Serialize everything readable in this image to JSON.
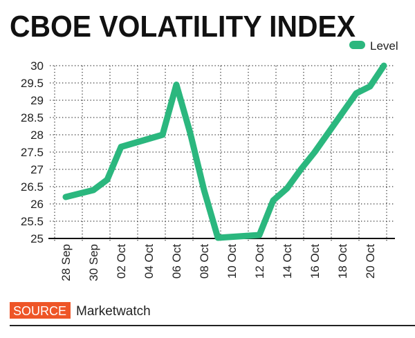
{
  "chart_data": {
    "type": "line",
    "title": "CBOE VOLATILITY INDEX",
    "xlabel": "",
    "ylabel": "",
    "ylim": [
      25,
      30
    ],
    "yticks": [
      "25",
      "25.5",
      "26",
      "26.5",
      "27",
      "27.5",
      "28",
      "28.5",
      "29",
      "29.5",
      "30"
    ],
    "xticks": [
      "28 Sep",
      "30 Sep",
      "02 Oct",
      "04 Oct",
      "06 Oct",
      "08 Oct",
      "10 Oct",
      "12 Oct",
      "14 Oct",
      "16 Oct",
      "18 Oct",
      "20 Oct"
    ],
    "grid": true,
    "legend_position": "top-right",
    "series": [
      {
        "name": "Level",
        "color": "#2bb77e",
        "x": [
          "28 Sep",
          "29 Sep",
          "30 Sep",
          "01 Oct",
          "02 Oct",
          "05 Oct",
          "06 Oct",
          "07 Oct",
          "08 Oct",
          "09 Oct",
          "12 Oct",
          "13 Oct",
          "14 Oct",
          "15 Oct",
          "16 Oct",
          "19 Oct",
          "20 Oct",
          "21 Oct"
        ],
        "values": [
          26.2,
          26.3,
          26.4,
          26.7,
          27.65,
          28.0,
          29.45,
          28.05,
          26.4,
          25.02,
          25.1,
          26.1,
          26.45,
          27.0,
          27.5,
          29.2,
          29.4,
          30.0
        ]
      }
    ]
  },
  "source": {
    "label": "SOURCE",
    "name": "Marketwatch",
    "badge_color": "#ee5527"
  }
}
